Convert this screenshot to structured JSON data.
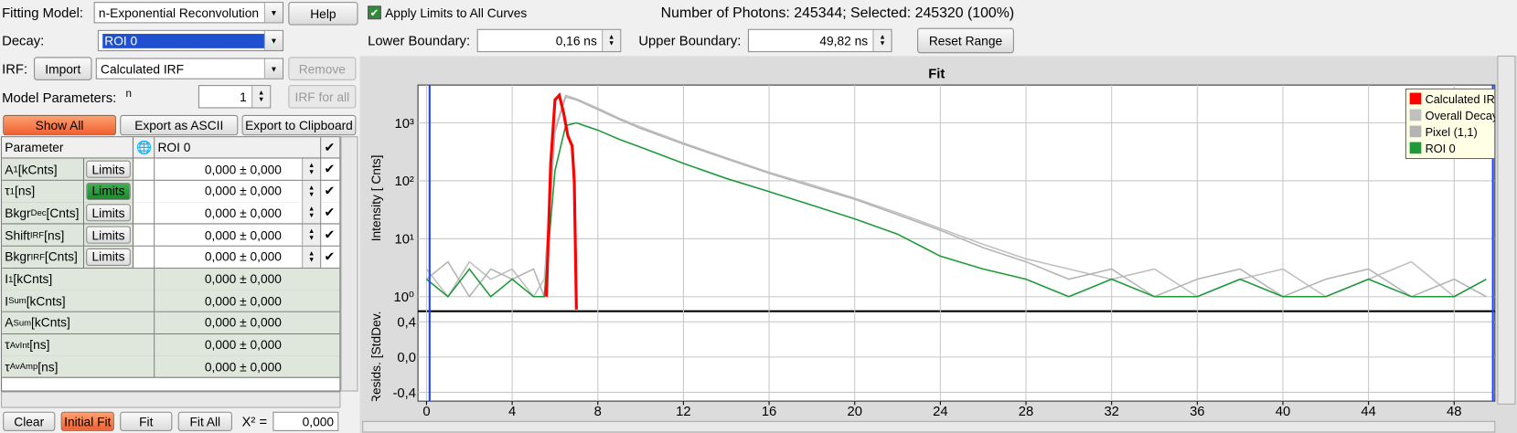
{
  "toolbar": {
    "fitting_model_label": "Fitting Model:",
    "fitting_model": "n-Exponential Reconvolution",
    "help": "Help",
    "apply_limits": "Apply Limits to All Curves",
    "photons": "Number of Photons: 245344; Selected: 245320 (100%)",
    "decay_label": "Decay:",
    "decay": "ROI 0",
    "lower_label": "Lower Boundary:",
    "lower": "0,16 ns",
    "upper_label": "Upper Boundary:",
    "upper": "49,82 ns",
    "reset": "Reset Range",
    "irf_label": "IRF:",
    "import": "Import",
    "irf": "Calculated IRF",
    "remove": "Remove",
    "model_params_label": "Model Parameters:",
    "n_label": "n",
    "n": "1",
    "irf_for_all": "IRF for all",
    "show_all": "Show All",
    "export_ascii": "Export as ASCII",
    "export_clipboard": "Export to Clipboard"
  },
  "table": {
    "header": [
      "Parameter",
      "ROI 0"
    ],
    "rows": [
      {
        "name": "A",
        "sub": "1",
        "unit": " [kCnts]",
        "button": "Limits",
        "active": false,
        "value": "0,000 ± 0,000",
        "checked": true
      },
      {
        "name": "τ",
        "sub": "1",
        "unit": " [ns]",
        "button": "Limits",
        "active": true,
        "value": "0,000 ± 0,000",
        "checked": true
      },
      {
        "name": "Bkgr",
        "sub": "Dec",
        "unit": "[Cnts]",
        "button": "Limits",
        "active": false,
        "value": "0,000 ± 0,000",
        "checked": true
      },
      {
        "name": "Shift",
        "sub": "IRF",
        "unit": "[ns]",
        "button": "Limits",
        "active": false,
        "value": "0,000 ± 0,000",
        "checked": true
      },
      {
        "name": "Bkgr",
        "sub": "IRF",
        "unit": "[Cnts]",
        "button": "Limits",
        "active": false,
        "value": "0,000 ± 0,000",
        "checked": true
      },
      {
        "name": "I",
        "sub": "1",
        "unit": " [kCnts]",
        "value": "0,000 ± 0,000"
      },
      {
        "name": "I",
        "sub": "Sum",
        "unit": " [kCnts]",
        "value": "0,000 ± 0,000"
      },
      {
        "name": "A",
        "sub": "Sum",
        "unit": " [kCnts]",
        "value": "0,000 ± 0,000"
      },
      {
        "name": "τ",
        "sub": "AvInt",
        "unit": " [ns]",
        "value": "0,000 ± 0,000"
      },
      {
        "name": "τ",
        "sub": "AvAmp",
        "unit": " [ns]",
        "value": "0,000 ± 0,000"
      }
    ]
  },
  "footer": {
    "clear": "Clear",
    "initial_fit": "Initial Fit",
    "fit": "Fit",
    "fit_all": "Fit All",
    "chi_label": "X² =",
    "chi": "0,000"
  },
  "chart_data": {
    "type": "line",
    "title": "Fit",
    "y_label": "Intensity [ Cnts]",
    "resid_label": "Resids. [StdDev.]",
    "yscale": "log",
    "grid": true,
    "legend_position": "upper right",
    "xlim": [
      -0.4,
      49.9
    ],
    "xticks": [
      0,
      4,
      8,
      12,
      16,
      20,
      24,
      28,
      32,
      36,
      40,
      44,
      48
    ],
    "ylim": [
      0.56,
      4500
    ],
    "yticks": [
      {
        "value": 1,
        "label": "10⁰"
      },
      {
        "value": 10,
        "label": "10¹"
      },
      {
        "value": 100,
        "label": "10²"
      },
      {
        "value": 1000,
        "label": "10³"
      }
    ],
    "resid_ylim": [
      -0.5,
      0.52
    ],
    "resid_yticks": [
      {
        "value": 0.4,
        "label": "0,4"
      },
      {
        "value": 0,
        "label": "0,0"
      },
      {
        "value": -0.4,
        "label": "-0,4"
      }
    ],
    "series": [
      {
        "name": "Calculated IRF",
        "color": "#ff0000",
        "x": [
          5.6,
          5.8,
          6.0,
          6.2,
          6.4,
          6.6,
          6.8,
          6.9,
          7.0
        ],
        "values": [
          1,
          200,
          2500,
          3000,
          1500,
          600,
          400,
          100,
          0.6
        ]
      },
      {
        "name": "Overall Decay",
        "color": "#c0c0c0",
        "x": [
          0,
          1,
          2,
          3,
          4,
          5,
          5.5,
          6,
          6.5,
          7,
          8,
          9,
          10,
          12,
          14,
          16,
          18,
          20,
          22,
          24,
          26,
          28,
          30,
          32,
          34,
          36,
          38,
          40,
          42,
          44,
          46,
          48,
          49.5
        ],
        "values": [
          3,
          1,
          4,
          2,
          3,
          1,
          2,
          800,
          3000,
          2600,
          1800,
          1200,
          850,
          450,
          250,
          140,
          85,
          50,
          28,
          15,
          8,
          4.5,
          3,
          2,
          3,
          1,
          2,
          3,
          1,
          2,
          4,
          1,
          2
        ]
      },
      {
        "name": "Pixel (1,1)",
        "color": "#b4b4b4",
        "x": [
          0,
          1,
          2,
          3,
          4,
          5,
          5.5,
          6,
          6.5,
          7,
          8,
          9,
          10,
          12,
          14,
          16,
          18,
          20,
          22,
          24,
          26,
          28,
          30,
          32,
          34,
          36,
          38,
          40,
          42,
          44,
          46,
          48,
          49.5
        ],
        "values": [
          2,
          4,
          1,
          3,
          2,
          3,
          1,
          700,
          2800,
          2500,
          1700,
          1150,
          800,
          430,
          240,
          135,
          80,
          48,
          26,
          14,
          7,
          4,
          2,
          3,
          1,
          2,
          3,
          1,
          2,
          3,
          1,
          2,
          1
        ]
      },
      {
        "name": "ROI 0",
        "color": "#1f9a3a",
        "x": [
          0,
          1,
          2,
          3,
          4,
          5,
          5.5,
          6,
          6.5,
          7,
          8,
          9,
          10,
          12,
          14,
          16,
          18,
          20,
          22,
          24,
          26,
          28,
          30,
          32,
          34,
          36,
          38,
          40,
          42,
          44,
          46,
          48,
          49.5
        ],
        "values": [
          2,
          1,
          3,
          1,
          2,
          1,
          1,
          150,
          900,
          1000,
          750,
          520,
          380,
          200,
          110,
          65,
          38,
          22,
          12,
          5,
          3,
          2,
          1,
          2,
          1,
          1,
          2,
          1,
          1,
          2,
          1,
          1,
          2
        ]
      }
    ]
  }
}
